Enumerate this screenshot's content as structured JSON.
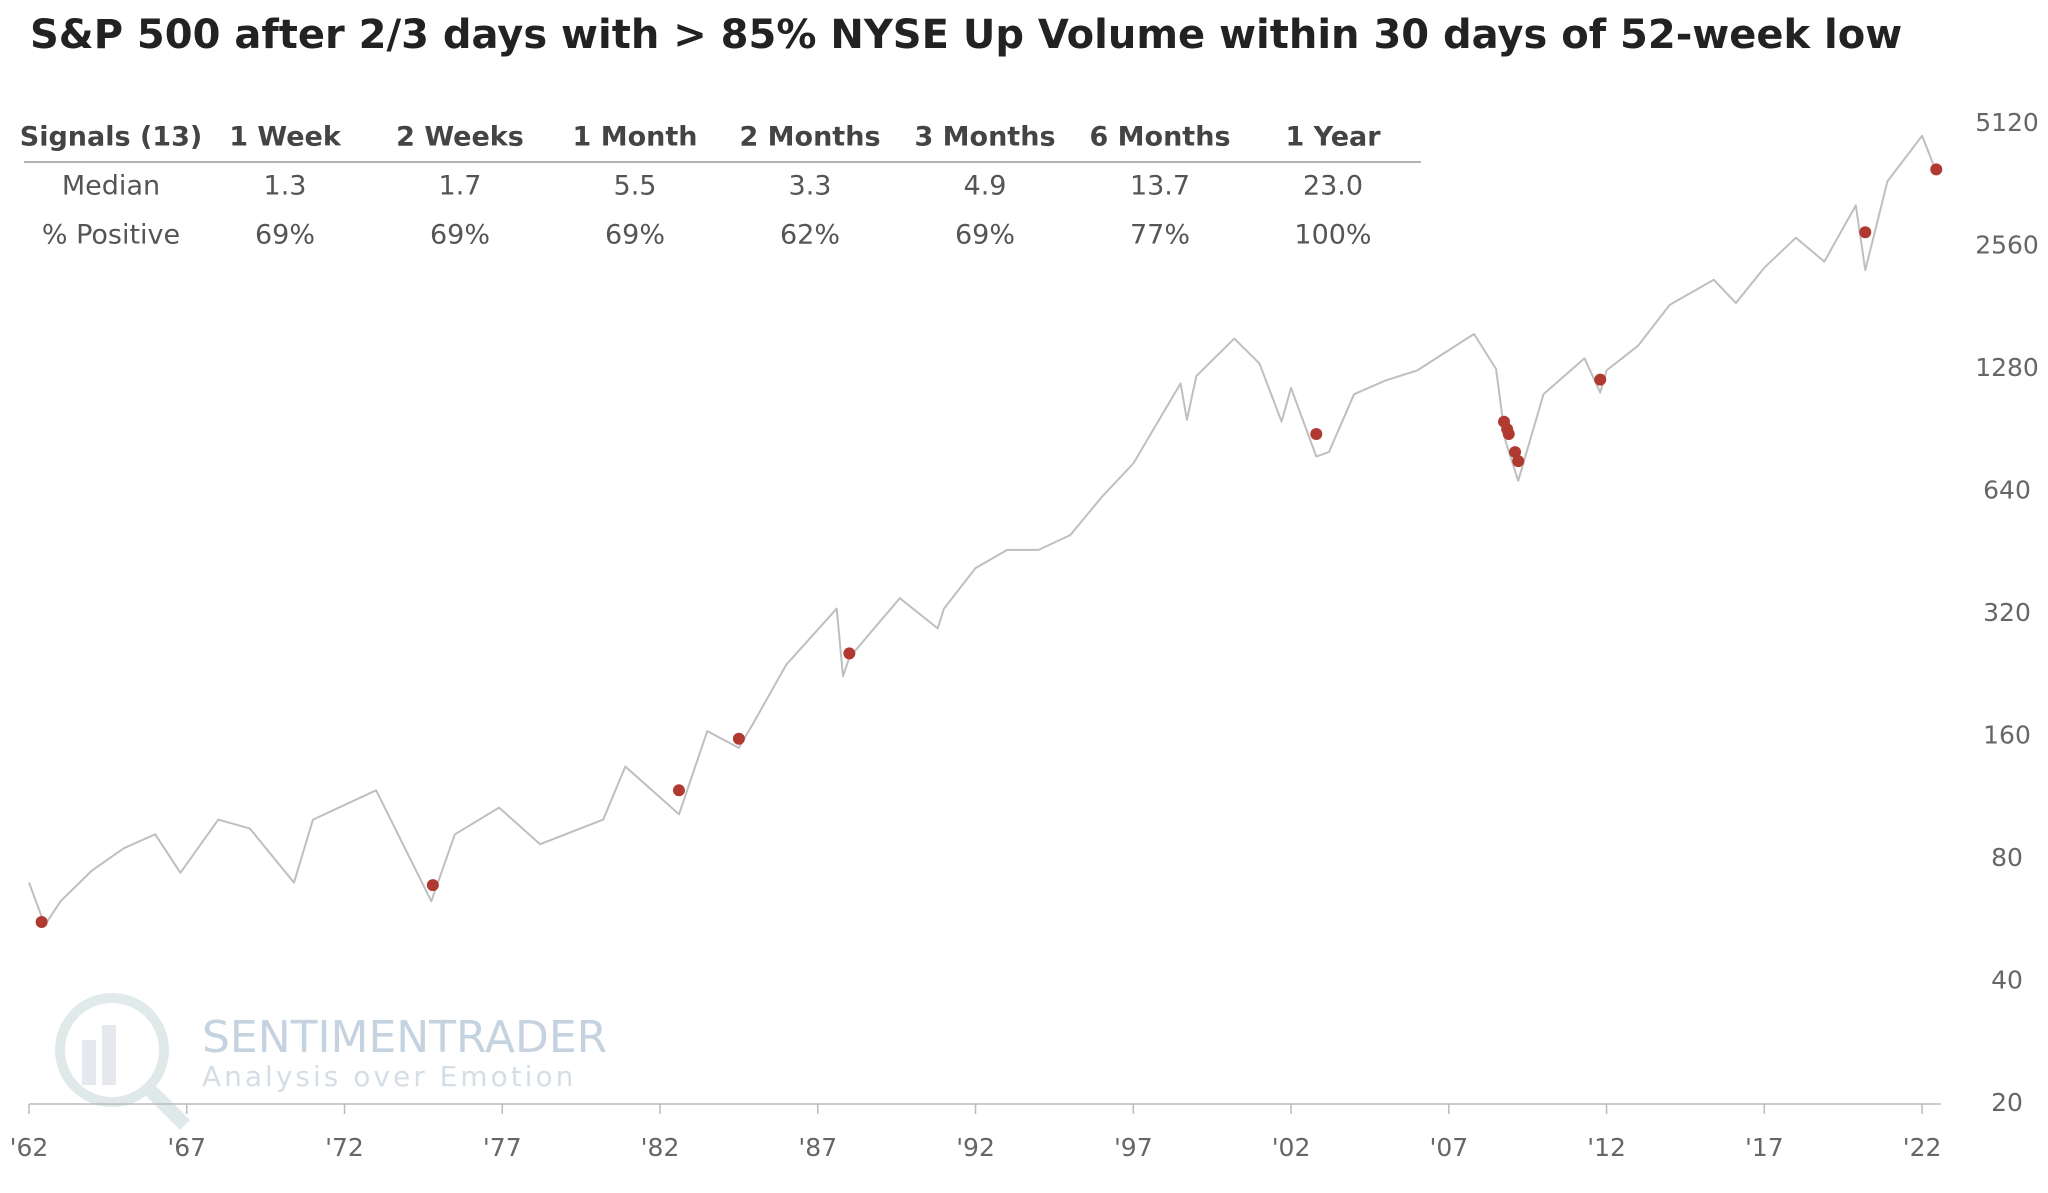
{
  "chart_data": {
    "type": "line",
    "title": "S&P 500 after 2/3 days with > 85% NYSE Up Volume within 30 days of 52-week low",
    "table": {
      "header": [
        "Signals (13)",
        "1 Week",
        "2 Weeks",
        "1 Month",
        "2 Months",
        "3 Months",
        "6 Months",
        "1 Year"
      ],
      "rows": [
        [
          "Median",
          "1.3",
          "1.7",
          "5.5",
          "3.3",
          "4.9",
          "13.7",
          "23.0"
        ],
        [
          "% Positive",
          "69%",
          "69%",
          "69%",
          "62%",
          "69%",
          "77%",
          "100%"
        ]
      ]
    },
    "watermark": [
      "SENTIMENTRADER",
      "Analysis over Emotion"
    ],
    "log_scale": true,
    "grid": false,
    "line": {
      "color": "#bfbfbf",
      "x": [
        1962.0,
        1962.5,
        1963.0,
        1964.0,
        1965.0,
        1966.0,
        1966.8,
        1968.0,
        1969.0,
        1970.4,
        1971.0,
        1973.0,
        1974.75,
        1975.5,
        1976.9,
        1978.2,
        1980.2,
        1980.9,
        1982.6,
        1983.5,
        1984.5,
        1985.0,
        1986.0,
        1987.6,
        1987.8,
        1988.0,
        1989.6,
        1990.8,
        1991.0,
        1992.0,
        1993.0,
        1994.0,
        1995.0,
        1996.0,
        1997.0,
        1998.5,
        1998.7,
        1999.0,
        2000.2,
        2001.0,
        2001.7,
        2002.0,
        2002.8,
        2003.2,
        2004.0,
        2005.0,
        2006.0,
        2007.8,
        2008.5,
        2008.8,
        2009.2,
        2010.0,
        2011.3,
        2011.8,
        2012.0,
        2013.0,
        2014.0,
        2015.4,
        2016.1,
        2017.0,
        2018.0,
        2018.9,
        2019.9,
        2020.2,
        2020.9,
        2022.0,
        2022.45
      ],
      "values": [
        70,
        55,
        63,
        75,
        85,
        92,
        74,
        100,
        95,
        70,
        100,
        118,
        63,
        92,
        107,
        87,
        100,
        135,
        103,
        165,
        150,
        175,
        240,
        330,
        225,
        250,
        350,
        295,
        330,
        415,
        460,
        460,
        500,
        620,
        750,
        1180,
        960,
        1230,
        1520,
        1320,
        950,
        1150,
        780,
        800,
        1110,
        1200,
        1270,
        1560,
        1280,
        850,
        680,
        1110,
        1360,
        1120,
        1270,
        1460,
        1840,
        2120,
        1860,
        2270,
        2690,
        2350,
        3230,
        2240,
        3700,
        4790,
        3900
      ]
    },
    "signals": {
      "color": "#b03a32",
      "x": [
        1962.4,
        1974.8,
        1982.6,
        1984.5,
        1988.0,
        2002.8,
        2008.75,
        2008.85,
        2008.9,
        2009.1,
        2009.2,
        2011.8,
        2020.2,
        2022.45
      ],
      "values": [
        56,
        69,
        118,
        158,
        256,
        886,
        950,
        910,
        886,
        800,
        760,
        1205,
        2775,
        3960
      ]
    },
    "xlim": [
      1962,
      2022.6
    ],
    "xticks": [
      {
        "value": 1962,
        "label": "'62"
      },
      {
        "value": 1967,
        "label": "'67"
      },
      {
        "value": 1972,
        "label": "'72"
      },
      {
        "value": 1977,
        "label": "'77"
      },
      {
        "value": 1982,
        "label": "'82"
      },
      {
        "value": 1987,
        "label": "'87"
      },
      {
        "value": 1992,
        "label": "'92"
      },
      {
        "value": 1997,
        "label": "'97"
      },
      {
        "value": 2002,
        "label": "'02"
      },
      {
        "value": 2007,
        "label": "'07"
      },
      {
        "value": 2012,
        "label": "'12"
      },
      {
        "value": 2017,
        "label": "'17"
      },
      {
        "value": 2022,
        "label": "'22"
      }
    ],
    "ylim": [
      20,
      5120
    ],
    "yticks": [
      20,
      40,
      80,
      160,
      320,
      640,
      1280,
      2560,
      5120
    ]
  }
}
